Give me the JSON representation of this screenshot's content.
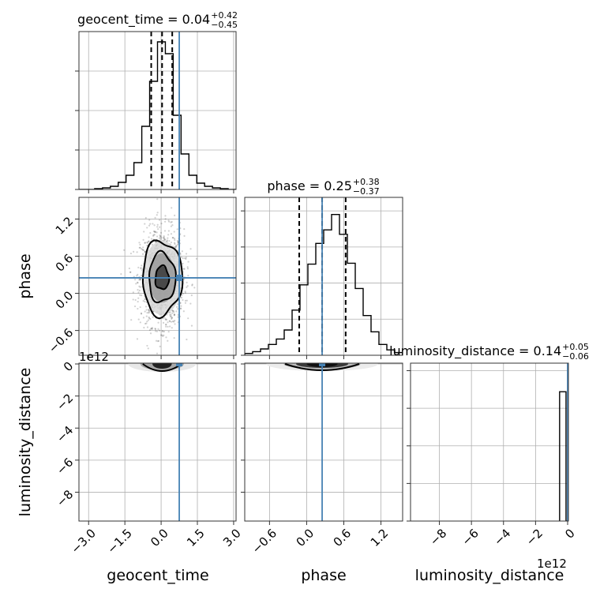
{
  "chart_data": {
    "type": "corner",
    "parameters": [
      "geocent_time",
      "phase",
      "luminosity_distance"
    ],
    "truth_color": "#4682b4",
    "truths": {
      "geocent_time": 0.75,
      "phase": 0.25,
      "luminosity_distance": 0.0
    },
    "titles": [
      {
        "param": "geocent_time",
        "main": "geocent_time = 0.04",
        "plus": "+0.42",
        "minus": "−0.45"
      },
      {
        "param": "phase",
        "main": "phase = 0.25",
        "plus": "+0.38",
        "minus": "−0.37"
      },
      {
        "param": "luminosity_distance",
        "main": "luminosity_distance = 0.14",
        "plus": "+0.05",
        "minus": "−0.06"
      }
    ],
    "axes": {
      "geocent_time": {
        "range": [
          -3.4,
          3.1
        ],
        "ticks": [
          -3.0,
          -1.5,
          0.0,
          1.5,
          3.0
        ],
        "tick_labels": [
          "−3.0",
          "−1.5",
          "0.0",
          "1.5",
          "3.0"
        ]
      },
      "phase": {
        "range": [
          -1.0,
          1.55
        ],
        "ticks": [
          -0.6,
          0.0,
          0.6,
          1.2
        ],
        "tick_labels": [
          "−0.6",
          "0.0",
          "0.6",
          "1.2"
        ]
      },
      "luminosity_distance": {
        "range": [
          -9.8,
          0.05
        ],
        "ticks": [
          -8,
          -6,
          -4,
          -2,
          0
        ],
        "tick_labels": [
          "−8",
          "−6",
          "−4",
          "−2",
          "0"
        ],
        "offset_text": "1e12"
      }
    },
    "hist_geocent_time": {
      "edges": [
        -3.4,
        -3.075,
        -2.75,
        -2.425,
        -2.1,
        -1.775,
        -1.45,
        -1.125,
        -0.8,
        -0.475,
        -0.15,
        0.175,
        0.5,
        0.825,
        1.15,
        1.475,
        1.8,
        2.125,
        2.45,
        2.775,
        3.1
      ],
      "counts": [
        0,
        0,
        1,
        2,
        4,
        9,
        18,
        34,
        80,
        137,
        187,
        172,
        94,
        45,
        18,
        8,
        4,
        2,
        1,
        0
      ],
      "quantiles": [
        -0.41,
        0.04,
        0.46
      ],
      "ymax": 200
    },
    "hist_phase": {
      "edges": [
        -1.0,
        -0.8725,
        -0.745,
        -0.6175,
        -0.49,
        -0.3625,
        -0.235,
        -0.1075,
        0.02,
        0.1475,
        0.275,
        0.4025,
        0.53,
        0.6575,
        0.785,
        0.9125,
        1.04,
        1.1675,
        1.295,
        1.4225,
        1.55
      ],
      "counts": [
        2,
        4,
        7,
        12,
        18,
        28,
        50,
        78,
        101,
        124,
        139,
        156,
        134,
        102,
        74,
        44,
        26,
        12,
        6,
        3
      ],
      "quantiles": [
        -0.12,
        0.25,
        0.63
      ],
      "ymax": 175
    },
    "hist_luminosity_distance": {
      "edges": [
        -0.5,
        -0.1,
        0.05
      ],
      "counts": [
        172,
        0
      ],
      "ymax": 210
    },
    "scatter_geocent_vs_phase": {
      "x_mean": 0.04,
      "x_sigma": 0.43,
      "y_mean": 0.25,
      "y_sigma": 0.37,
      "points": 1400,
      "contour_levels": [
        {
          "sx": 0.28,
          "sy": 0.19,
          "fill": "#3a3a3a"
        },
        {
          "sx": 0.55,
          "sy": 0.4,
          "fill": "#9a9a9a"
        },
        {
          "sx": 0.82,
          "sy": 0.6,
          "fill": "#d8d8d8"
        }
      ]
    },
    "density_geocent_vs_distance": {
      "x_mean": 0.04,
      "x_sigma": 0.43,
      "y_mean": 0.14,
      "y_sigma": 0.06
    },
    "density_phase_vs_distance": {
      "x_mean": 0.25,
      "x_sigma": 0.37,
      "y_mean": 0.14,
      "y_sigma": 0.06
    }
  }
}
